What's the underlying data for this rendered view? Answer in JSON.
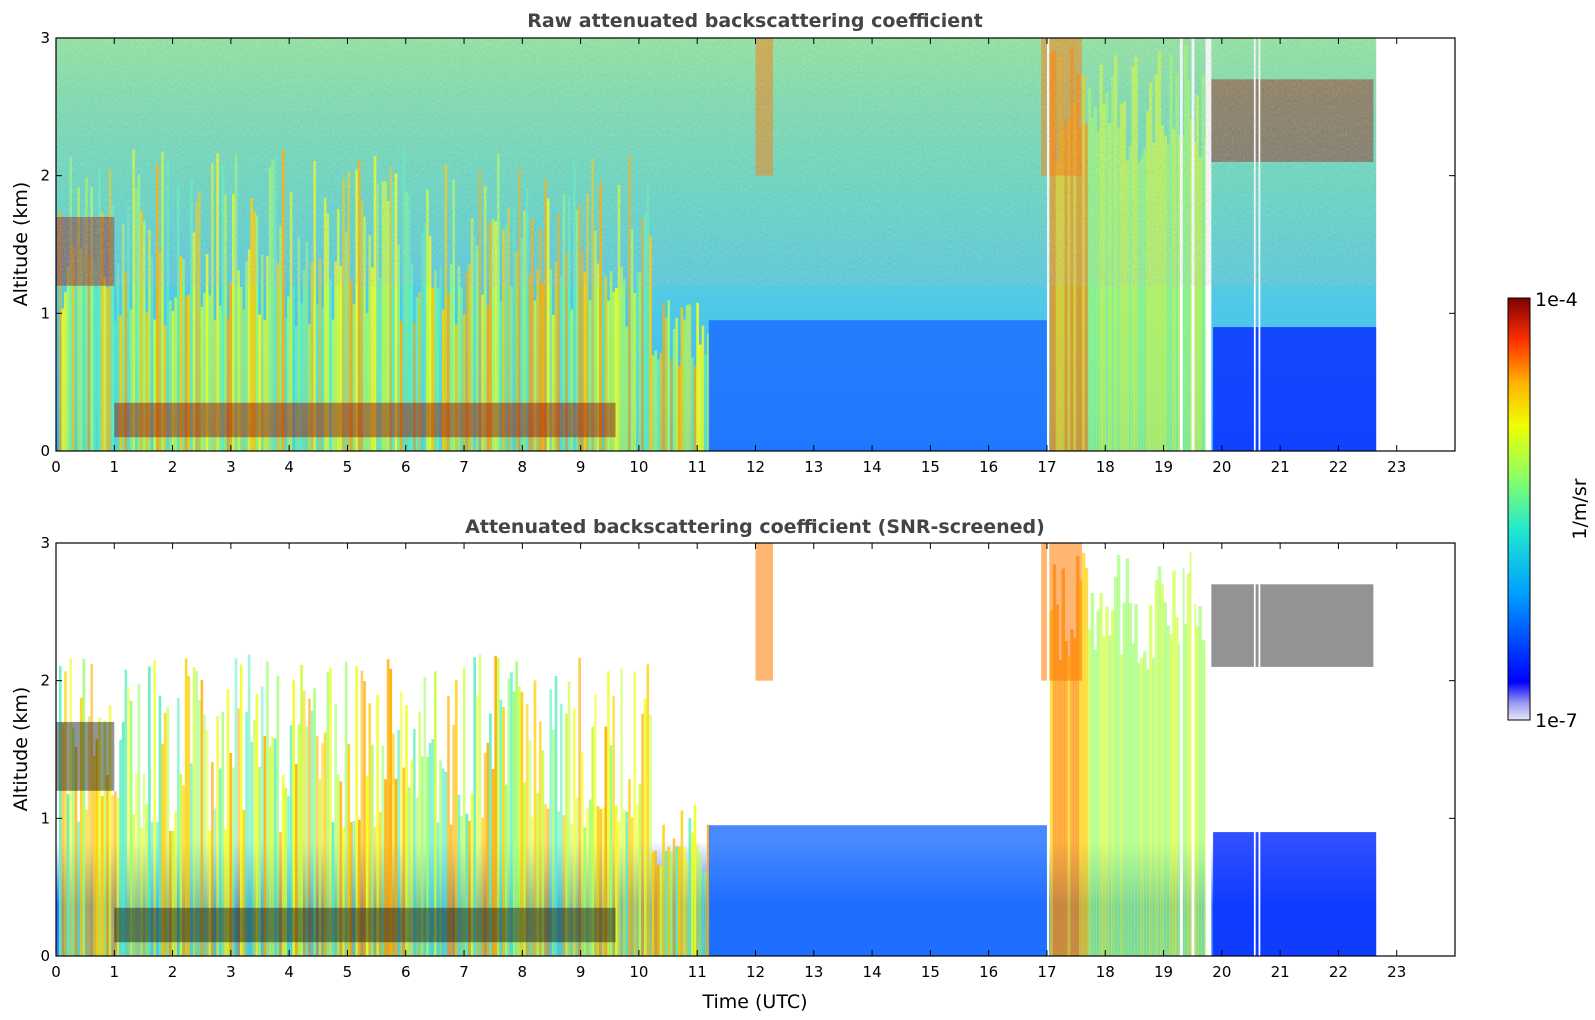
{
  "chart_data": [
    {
      "type": "heatmap",
      "title": "Raw attenuated backscattering coefficient",
      "xlabel": "",
      "ylabel": "Altitude (km)",
      "xlim": [
        0,
        24
      ],
      "ylim": [
        0,
        3
      ],
      "xticks": [
        "0",
        "1",
        "2",
        "3",
        "4",
        "5",
        "6",
        "7",
        "8",
        "9",
        "10",
        "11",
        "12",
        "13",
        "14",
        "15",
        "16",
        "17",
        "18",
        "19",
        "20",
        "21",
        "22",
        "23"
      ],
      "yticks": [
        "0",
        "1",
        "2",
        "3"
      ],
      "data_end_time": 22.65,
      "gaps": [
        [
          17.0,
          17.04
        ],
        [
          19.28,
          19.33
        ],
        [
          19.48,
          19.53
        ],
        [
          19.72,
          19.82
        ],
        [
          20.55,
          20.58
        ],
        [
          20.63,
          20.66
        ]
      ],
      "features": [
        {
          "name": "boundary layer",
          "time": [
            1.0,
            9.6
          ],
          "altitude": [
            0.1,
            0.35
          ],
          "level": "1e-4"
        },
        {
          "name": "cloud base",
          "time": [
            0.0,
            1.0
          ],
          "altitude": [
            1.2,
            1.7
          ],
          "level": "1e-4"
        },
        {
          "name": "cloud",
          "time": [
            12.0,
            12.3
          ],
          "altitude": [
            2.0,
            3.0
          ],
          "level": "high"
        },
        {
          "name": "cloud",
          "time": [
            16.9,
            17.6
          ],
          "altitude": [
            2.0,
            3.0
          ],
          "level": "high"
        },
        {
          "name": "cloud",
          "time": [
            19.8,
            22.6
          ],
          "altitude": [
            2.1,
            2.7
          ],
          "level": "1e-4"
        }
      ],
      "grid": false
    },
    {
      "type": "heatmap",
      "title": "Attenuated backscattering coefficient (SNR-screened)",
      "xlabel": "Time (UTC)",
      "ylabel": "Altitude (km)",
      "xlim": [
        0,
        24
      ],
      "ylim": [
        0,
        3
      ],
      "xticks": [
        "0",
        "1",
        "2",
        "3",
        "4",
        "5",
        "6",
        "7",
        "8",
        "9",
        "10",
        "11",
        "12",
        "13",
        "14",
        "15",
        "16",
        "17",
        "18",
        "19",
        "20",
        "21",
        "22",
        "23"
      ],
      "yticks": [
        "0",
        "1",
        "2",
        "3"
      ],
      "data_end_time": 22.65,
      "grid": false
    }
  ],
  "colorbar": {
    "max_label": "1e-4",
    "min_label": "1e-7",
    "unit": "1/m/sr",
    "colormap": "jet",
    "min_color": "#e6e6f7",
    "max_color": "#7f0000"
  }
}
